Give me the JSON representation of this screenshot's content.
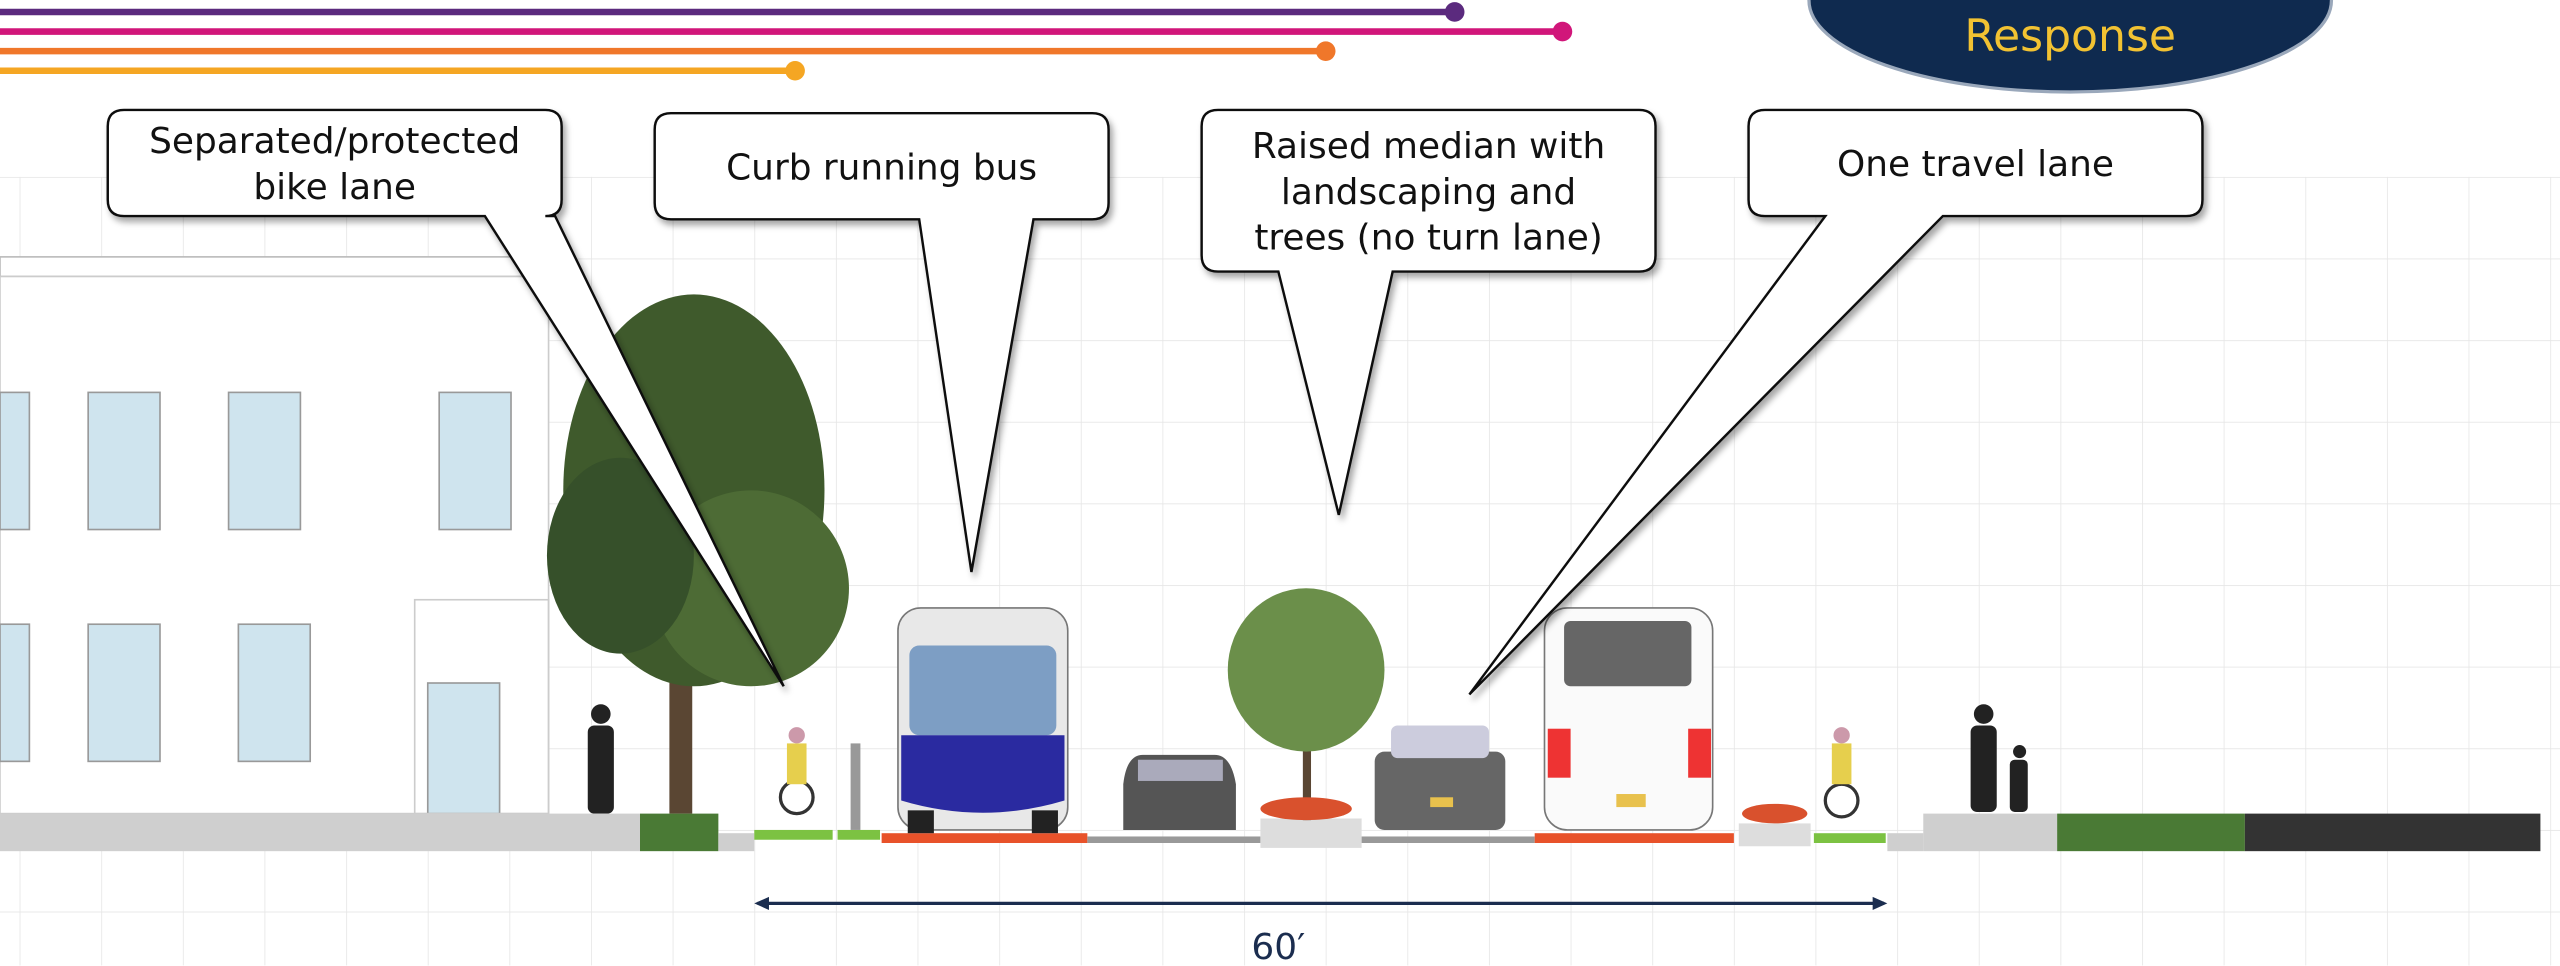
{
  "badge": {
    "text": "Response"
  },
  "callouts": [
    {
      "lines": [
        "Separated/protected",
        "bike lane"
      ]
    },
    {
      "lines": [
        "Curb running bus"
      ]
    },
    {
      "lines": [
        "Raised median with",
        "landscaping and",
        "trees (no turn lane)"
      ]
    },
    {
      "lines": [
        "One travel lane"
      ]
    }
  ],
  "dimension": {
    "label": "60′"
  }
}
